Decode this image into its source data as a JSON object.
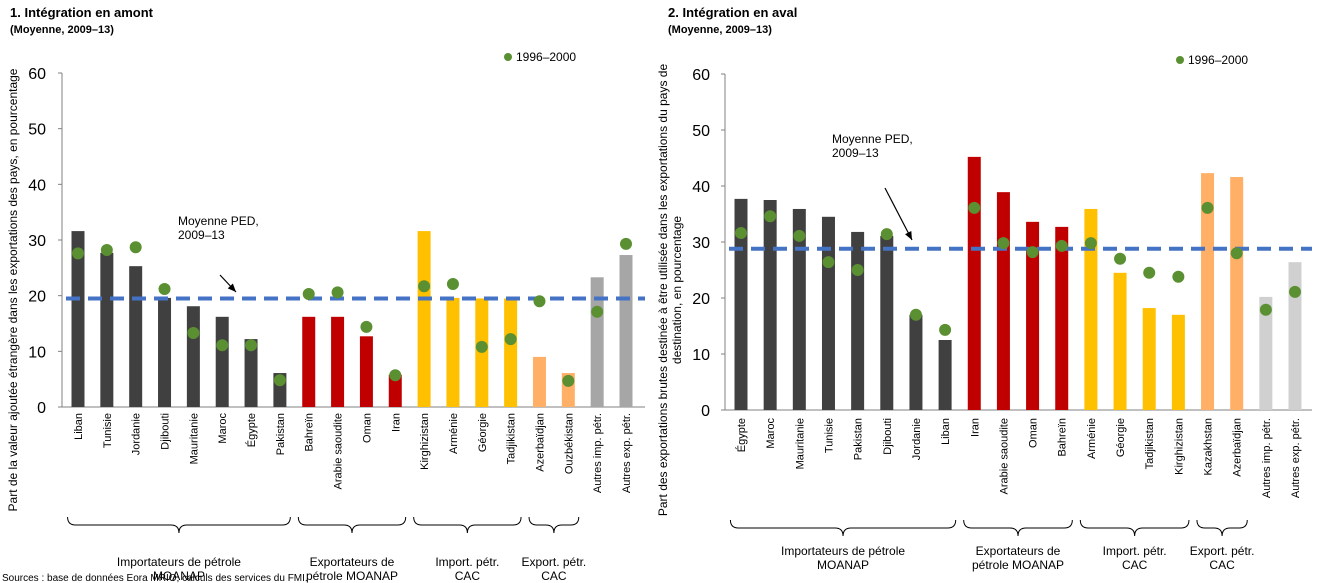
{
  "chart_data": [
    {
      "type": "bar",
      "title": "1. Intégration en amont",
      "subtitle": "(Moyenne, 2009–13)",
      "ylabel": [
        "Part de la valeur ajoutée étrangère dans les exportations des pays, en pourcentage"
      ],
      "ylim": [
        0,
        60
      ],
      "yticks": [
        0,
        10,
        20,
        30,
        40,
        50,
        60
      ],
      "categories": [
        "Liban",
        "Tunisie",
        "Jordanie",
        "Djibouti",
        "Mauritanie",
        "Maroc",
        "Égypte",
        "Pakistan",
        "Bahreïn",
        "Arabie saoudite",
        "Oman",
        "Iran",
        "Kirghizistan",
        "Arménie",
        "Géorgie",
        "Tadjikistan",
        "Azerbaïdjan",
        "Ouzbékistan",
        "Autres imp. pétr.",
        "Autres exp. pétr."
      ],
      "series": [
        {
          "type": "bar",
          "values": [
            31.6,
            27.7,
            25.3,
            19.6,
            18.1,
            16.2,
            12.2,
            6.1,
            16.2,
            16.2,
            12.7,
            5.8,
            31.6,
            19.6,
            19.5,
            19.5,
            9.0,
            6.1,
            23.3,
            27.3
          ],
          "colors": [
            "#404040",
            "#404040",
            "#404040",
            "#404040",
            "#404040",
            "#404040",
            "#404040",
            "#404040",
            "#c00000",
            "#c00000",
            "#c00000",
            "#c00000",
            "#ffc000",
            "#ffc000",
            "#ffc000",
            "#ffc000",
            "#ffb066",
            "#ffb066",
            "#a6a6a6",
            "#a6a6a6"
          ]
        },
        {
          "type": "scatter",
          "name": "1996–2000",
          "color": "#5a8f32",
          "values": [
            27.6,
            28.2,
            28.7,
            21.2,
            13.3,
            11.1,
            11.1,
            4.8,
            20.3,
            20.6,
            14.4,
            5.7,
            21.7,
            22.1,
            10.8,
            12.2,
            19.0,
            4.7,
            17.1,
            29.3
          ]
        }
      ],
      "reference_line": {
        "value": 19.5,
        "label": [
          "Moyenne PED,",
          "2009–13"
        ]
      },
      "groups": [
        {
          "label": [
            "Importateurs de pétrole",
            "MOANAP"
          ],
          "size": 8
        },
        {
          "label": [
            "Exportateurs de",
            "pétrole MOANAP"
          ],
          "size": 4
        },
        {
          "label": [
            "Import. pétr.",
            "CAC"
          ],
          "size": 4
        },
        {
          "label": [
            "Export. pétr.",
            "CAC"
          ],
          "size": 2
        }
      ],
      "source": "Sources : base de données Eora MRIO; calculs des services du FMI."
    },
    {
      "type": "bar",
      "title": "2. Intégration en aval",
      "subtitle": "(Moyenne, 2009–13)",
      "ylabel": [
        "Part des exportations brutes destinée à être utilisée dans les exportations du pays de",
        "destination, en pourcentage"
      ],
      "ylim": [
        0,
        60
      ],
      "yticks": [
        0,
        10,
        20,
        30,
        40,
        50,
        60
      ],
      "categories": [
        "Égypte",
        "Maroc",
        "Mauritanie",
        "Tunisie",
        "Pakistan",
        "Djibouti",
        "Jordanie",
        "Liban",
        "Iran",
        "Arabie saoudite",
        "Oman",
        "Bahreïn",
        "Arménie",
        "Géorgie",
        "Tadjikistan",
        "Kirghizistan",
        "Kazakhstan",
        "Azerbaïdjan",
        "Autres imp. pétr.",
        "Autres exp. pétr."
      ],
      "series": [
        {
          "type": "bar",
          "values": [
            37.7,
            37.5,
            35.9,
            34.5,
            31.8,
            31.1,
            17.0,
            12.5,
            45.2,
            38.9,
            33.6,
            32.7,
            35.9,
            24.5,
            18.2,
            17.0,
            42.3,
            41.6,
            20.2,
            26.4
          ],
          "colors": [
            "#404040",
            "#404040",
            "#404040",
            "#404040",
            "#404040",
            "#404040",
            "#404040",
            "#404040",
            "#c00000",
            "#c00000",
            "#c00000",
            "#c00000",
            "#ffc000",
            "#ffc000",
            "#ffc000",
            "#ffc000",
            "#ffb066",
            "#ffb066",
            "#d0d0d0",
            "#d0d0d0"
          ]
        },
        {
          "type": "scatter",
          "name": "1996–2000",
          "color": "#5a8f32",
          "values": [
            31.6,
            34.6,
            31.1,
            26.4,
            25.0,
            31.4,
            17.0,
            14.3,
            36.1,
            29.8,
            28.2,
            29.3,
            29.8,
            27.0,
            24.5,
            23.8,
            36.1,
            28.0,
            17.9,
            21.1
          ]
        }
      ],
      "reference_line": {
        "value": 28.8,
        "label": [
          "Moyenne PED,",
          "2009–13"
        ]
      },
      "groups": [
        {
          "label": [
            "Importateurs de pétrole",
            "MOANAP"
          ],
          "size": 8
        },
        {
          "label": [
            "Exportateurs de",
            "pétrole MOANAP"
          ],
          "size": 4
        },
        {
          "label": [
            "Import. pétr.",
            "CAC"
          ],
          "size": 4
        },
        {
          "label": [
            "Export. pétr.",
            "CAC"
          ],
          "size": 2
        }
      ]
    }
  ]
}
